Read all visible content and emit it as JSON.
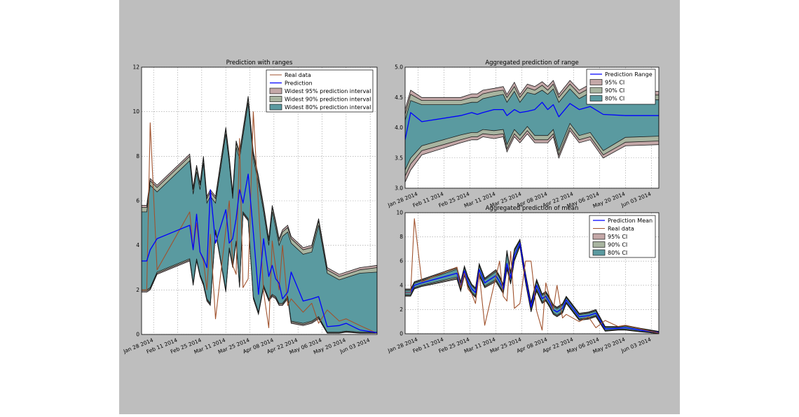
{
  "colors": {
    "panel_bg": "#bebebe",
    "real": "#a0522d",
    "prediction": "#0000ff",
    "ci95": "#c4a8a8",
    "ci90": "#a8b4a0",
    "ci80": "#5a9aa0"
  },
  "chart_data": [
    {
      "type": "area",
      "title": "Prediction with ranges",
      "xlabel": "",
      "ylabel": "",
      "ylim": [
        0,
        12
      ],
      "yticks": [
        "0",
        "2",
        "4",
        "6",
        "8",
        "10",
        "12"
      ],
      "xticks": [
        "Jan 28 2014",
        "Feb 11 2014",
        "Feb 25 2014",
        "Mar 11 2014",
        "Mar 25 2014",
        "Apr 08 2014",
        "Apr 22 2014",
        "May 06 2014",
        "May 20 2014",
        "Jun 03 2014"
      ],
      "xrange": [
        "2014-01-21",
        "2014-06-07"
      ],
      "grid": true,
      "legend_position": "top-right",
      "legend": [
        "Real data",
        "Prediction",
        "Widest 95% prediction interval",
        "Widest 90% prediction interval",
        "Widest 80% prediction interval"
      ],
      "x": [
        "2014-01-21",
        "2014-01-24",
        "2014-01-26",
        "2014-01-30",
        "2014-02-18",
        "2014-02-20",
        "2014-02-22",
        "2014-02-24",
        "2014-02-26",
        "2014-02-28",
        "2014-03-02",
        "2014-03-05",
        "2014-03-11",
        "2014-03-13",
        "2014-03-15",
        "2014-03-17",
        "2014-03-19",
        "2014-03-21",
        "2014-03-24",
        "2014-03-27",
        "2014-03-30",
        "2014-04-02",
        "2014-04-05",
        "2014-04-07",
        "2014-04-09",
        "2014-04-11",
        "2014-04-13",
        "2014-04-16",
        "2014-04-18",
        "2014-04-25",
        "2014-04-30",
        "2014-05-04",
        "2014-05-09",
        "2014-05-16",
        "2014-05-20",
        "2014-05-28",
        "2014-06-07"
      ],
      "series": [
        {
          "name": "Real data",
          "values": [
            2,
            2,
            9.5,
            2.9,
            5.5,
            3.8,
            5.0,
            3.7,
            3.3,
            2.0,
            4.5,
            0.7,
            4.7,
            6.0,
            3.1,
            2.7,
            8.8,
            2.1,
            2.5,
            10.0,
            5.8,
            1.9,
            0.3,
            4.2,
            3.0,
            2.0,
            4.0,
            1.3,
            1.6,
            1.0,
            1.4,
            0.5,
            1.1,
            0.6,
            0.7,
            0.4,
            0.05
          ]
        },
        {
          "name": "Prediction",
          "values": [
            3.3,
            3.3,
            3.8,
            4.3,
            4.9,
            3.8,
            5.4,
            3.7,
            3.4,
            3.0,
            6.5,
            4.1,
            5.6,
            4.1,
            4.3,
            5.2,
            6.5,
            5.9,
            7.2,
            4.6,
            1.8,
            4.3,
            2.6,
            3.1,
            2.5,
            2.3,
            1.6,
            1.9,
            2.8,
            1.5,
            1.6,
            1.7,
            0.35,
            0.4,
            0.5,
            0.2,
            0.08
          ]
        },
        {
          "name": "Widest 95% prediction interval",
          "upper": [
            5.8,
            5.8,
            7.0,
            6.7,
            8.1,
            6.6,
            7.6,
            6.8,
            8.0,
            6.2,
            6.5,
            6.2,
            9.3,
            8.0,
            6.4,
            8.7,
            8.2,
            9.2,
            10.7,
            8.2,
            7.1,
            5.8,
            4.3,
            5.8,
            5.1,
            4.3,
            4.7,
            4.9,
            4.4,
            3.9,
            4.0,
            5.2,
            3.0,
            2.7,
            2.8,
            3.0,
            3.1
          ],
          "lower": [
            1.9,
            1.9,
            2.0,
            2.7,
            3.3,
            2.2,
            3.3,
            2.6,
            2.2,
            1.5,
            1.3,
            4.6,
            1.9,
            3.8,
            3.0,
            4.1,
            2.1,
            5.4,
            5.1,
            1.6,
            0.9,
            2.1,
            1.5,
            1.7,
            1.6,
            1.3,
            1.3,
            1.6,
            0.5,
            0.4,
            0.5,
            0.7,
            0.05,
            0.05,
            0.1,
            0.05,
            0.05
          ]
        },
        {
          "name": "Widest 90% prediction interval",
          "upper": [
            5.7,
            5.7,
            6.9,
            6.6,
            8.0,
            6.5,
            7.5,
            6.7,
            7.9,
            6.1,
            6.4,
            6.1,
            9.2,
            7.9,
            6.3,
            8.6,
            8.1,
            9.1,
            10.6,
            8.1,
            7.0,
            5.7,
            4.2,
            5.7,
            5.0,
            4.2,
            4.6,
            4.8,
            4.3,
            3.8,
            3.9,
            5.1,
            2.9,
            2.6,
            2.7,
            2.9,
            3.0
          ],
          "lower": [
            1.95,
            1.95,
            2.05,
            2.75,
            3.35,
            2.25,
            3.35,
            2.65,
            2.25,
            1.55,
            1.35,
            4.65,
            1.95,
            3.85,
            3.05,
            4.15,
            2.15,
            5.45,
            5.15,
            1.65,
            0.95,
            2.15,
            1.55,
            1.75,
            1.65,
            1.35,
            1.35,
            1.65,
            0.55,
            0.45,
            0.55,
            0.75,
            0.07,
            0.07,
            0.12,
            0.07,
            0.07
          ]
        },
        {
          "name": "Widest 80% prediction interval",
          "upper": [
            5.5,
            5.5,
            6.7,
            6.4,
            7.8,
            6.3,
            7.3,
            6.5,
            7.7,
            5.9,
            6.2,
            5.9,
            9.0,
            7.7,
            6.1,
            8.4,
            7.9,
            8.9,
            10.4,
            7.9,
            6.8,
            5.5,
            4.0,
            5.5,
            4.8,
            4.0,
            4.4,
            4.6,
            4.1,
            3.6,
            3.7,
            4.9,
            2.75,
            2.45,
            2.55,
            2.75,
            2.8
          ],
          "lower": [
            2.0,
            2.0,
            2.1,
            2.8,
            3.4,
            2.3,
            3.4,
            2.7,
            2.3,
            1.6,
            1.4,
            4.7,
            2.0,
            3.9,
            3.1,
            4.2,
            2.2,
            5.5,
            5.2,
            1.7,
            1.0,
            2.2,
            1.6,
            1.8,
            1.7,
            1.4,
            1.4,
            1.7,
            0.6,
            0.5,
            0.6,
            0.8,
            0.1,
            0.1,
            0.15,
            0.1,
            0.1
          ]
        }
      ]
    },
    {
      "type": "area",
      "title": "Aggregated prediction of range",
      "xlabel": "",
      "ylabel": "",
      "ylim": [
        3.0,
        5.0
      ],
      "yticks": [
        "3.0",
        "3.5",
        "4.0",
        "4.5",
        "5.0"
      ],
      "xticks": [
        "Jan 28 2014",
        "Feb 11 2014",
        "Feb 25 2014",
        "Mar 11 2014",
        "Mar 25 2014",
        "Apr 08 2014",
        "Apr 22 2014",
        "May 06 2014",
        "May 20 2014",
        "Jun 03 2014"
      ],
      "xrange": [
        "2014-01-21",
        "2014-06-07"
      ],
      "grid": true,
      "legend_position": "top-right",
      "legend": [
        "Prediction Range",
        "95% CI",
        "90% CI",
        "80% CI"
      ],
      "x": [
        "2014-01-21",
        "2014-01-24",
        "2014-01-30",
        "2014-02-20",
        "2014-02-26",
        "2014-03-01",
        "2014-03-04",
        "2014-03-10",
        "2014-03-15",
        "2014-03-17",
        "2014-03-21",
        "2014-03-24",
        "2014-03-28",
        "2014-04-01",
        "2014-04-05",
        "2014-04-08",
        "2014-04-11",
        "2014-04-14",
        "2014-04-20",
        "2014-04-25",
        "2014-05-01",
        "2014-05-08",
        "2014-05-20",
        "2014-06-07"
      ],
      "series": [
        {
          "name": "Prediction Range",
          "values": [
            3.8,
            4.25,
            4.1,
            4.2,
            4.25,
            4.22,
            4.25,
            4.3,
            4.3,
            4.2,
            4.3,
            4.25,
            4.27,
            4.3,
            4.42,
            4.3,
            4.38,
            4.18,
            4.4,
            4.3,
            4.35,
            4.22,
            4.2,
            4.2
          ]
        },
        {
          "name": "95% CI",
          "upper": [
            4.3,
            4.62,
            4.5,
            4.5,
            4.56,
            4.56,
            4.62,
            4.65,
            4.68,
            4.55,
            4.75,
            4.55,
            4.72,
            4.68,
            4.76,
            4.68,
            4.78,
            4.55,
            4.78,
            4.62,
            4.72,
            4.62,
            4.6,
            4.6
          ],
          "lower": [
            3.1,
            3.3,
            3.55,
            3.75,
            3.8,
            3.8,
            3.85,
            3.82,
            3.85,
            3.6,
            3.85,
            3.75,
            3.9,
            3.75,
            3.75,
            3.75,
            3.85,
            3.5,
            3.95,
            3.75,
            3.8,
            3.5,
            3.7,
            3.72
          ]
        },
        {
          "name": "90% CI",
          "upper": [
            4.22,
            4.55,
            4.45,
            4.45,
            4.5,
            4.5,
            4.56,
            4.6,
            4.62,
            4.5,
            4.68,
            4.5,
            4.66,
            4.62,
            4.7,
            4.62,
            4.72,
            4.5,
            4.72,
            4.56,
            4.66,
            4.56,
            4.54,
            4.54
          ],
          "lower": [
            3.2,
            3.4,
            3.62,
            3.8,
            3.85,
            3.85,
            3.9,
            3.88,
            3.9,
            3.65,
            3.9,
            3.8,
            3.95,
            3.8,
            3.8,
            3.8,
            3.9,
            3.55,
            4.0,
            3.8,
            3.85,
            3.55,
            3.76,
            3.78
          ]
        },
        {
          "name": "80% CI",
          "upper": [
            4.12,
            4.45,
            4.38,
            4.38,
            4.42,
            4.42,
            4.48,
            4.52,
            4.55,
            4.42,
            4.6,
            4.42,
            4.58,
            4.55,
            4.62,
            4.55,
            4.64,
            4.42,
            4.64,
            4.48,
            4.58,
            4.48,
            4.46,
            4.46
          ],
          "lower": [
            3.3,
            3.5,
            3.7,
            3.88,
            3.92,
            3.92,
            3.97,
            3.95,
            3.97,
            3.72,
            3.97,
            3.87,
            4.02,
            3.87,
            3.87,
            3.87,
            3.97,
            3.62,
            4.07,
            3.87,
            3.92,
            3.62,
            3.84,
            3.86
          ]
        }
      ]
    },
    {
      "type": "area",
      "title": "Aggregated prediction of mean",
      "xlabel": "",
      "ylabel": "",
      "ylim": [
        0,
        10
      ],
      "yticks": [
        "0",
        "2",
        "4",
        "6",
        "8",
        "10"
      ],
      "xticks": [
        "Jan 28 2014",
        "Feb 11 2014",
        "Feb 25 2014",
        "Mar 11 2014",
        "Mar 25 2014",
        "Apr 08 2014",
        "Apr 22 2014",
        "May 06 2014",
        "May 20 2014",
        "Jun 03 2014"
      ],
      "xrange": [
        "2014-01-21",
        "2014-06-07"
      ],
      "grid": true,
      "legend_position": "top-right",
      "legend": [
        "Prediction Mean",
        "Real data",
        "95% CI",
        "90% CI",
        "80% CI"
      ],
      "x": [
        "2014-01-21",
        "2014-01-24",
        "2014-01-26",
        "2014-01-30",
        "2014-02-18",
        "2014-02-20",
        "2014-02-22",
        "2014-02-24",
        "2014-02-26",
        "2014-02-28",
        "2014-03-02",
        "2014-03-05",
        "2014-03-11",
        "2014-03-13",
        "2014-03-15",
        "2014-03-17",
        "2014-03-19",
        "2014-03-21",
        "2014-03-24",
        "2014-03-27",
        "2014-03-30",
        "2014-04-02",
        "2014-04-05",
        "2014-04-07",
        "2014-04-09",
        "2014-04-11",
        "2014-04-13",
        "2014-04-16",
        "2014-04-18",
        "2014-04-25",
        "2014-04-30",
        "2014-05-04",
        "2014-05-09",
        "2014-05-16",
        "2014-05-20",
        "2014-05-28",
        "2014-06-07"
      ],
      "series": [
        {
          "name": "Prediction Mean",
          "values": [
            3.4,
            3.4,
            4.0,
            4.2,
            5.0,
            3.9,
            5.2,
            4.3,
            3.7,
            3.4,
            5.3,
            4.2,
            4.8,
            4.3,
            3.7,
            5.8,
            4.6,
            6.5,
            7.5,
            4.6,
            2.2,
            4.0,
            2.9,
            3.1,
            2.6,
            2.0,
            1.8,
            2.1,
            2.8,
            1.4,
            1.5,
            1.7,
            0.4,
            0.45,
            0.5,
            0.3,
            0.1
          ]
        },
        {
          "name": "Real data",
          "values": [
            3.4,
            3.4,
            9.5,
            4.3,
            5.5,
            3.8,
            5.0,
            3.7,
            3.3,
            2.5,
            5.0,
            0.7,
            4.7,
            6.0,
            3.1,
            2.7,
            6.8,
            2.1,
            2.5,
            6.0,
            6.0,
            1.9,
            0.3,
            4.2,
            3.0,
            2.0,
            4.0,
            1.3,
            1.6,
            1.0,
            1.4,
            0.5,
            1.1,
            0.6,
            0.7,
            0.4,
            0.05
          ]
        },
        {
          "name": "95% CI",
          "upper": [
            3.7,
            3.7,
            4.3,
            4.5,
            5.5,
            4.3,
            5.6,
            4.7,
            4.1,
            3.8,
            5.8,
            4.6,
            5.3,
            4.8,
            4.1,
            6.9,
            5.1,
            7.0,
            7.8,
            5.0,
            2.6,
            4.5,
            3.3,
            3.5,
            3.0,
            2.4,
            2.2,
            2.5,
            3.1,
            1.7,
            1.8,
            2.0,
            0.6,
            0.6,
            0.7,
            0.45,
            0.2
          ],
          "lower": [
            3.1,
            3.1,
            3.7,
            3.9,
            4.5,
            3.5,
            4.8,
            3.9,
            3.3,
            3.0,
            4.8,
            3.8,
            4.3,
            3.8,
            3.3,
            5.3,
            4.1,
            6.0,
            7.2,
            4.2,
            1.8,
            3.5,
            2.5,
            2.7,
            2.2,
            1.6,
            1.4,
            1.7,
            2.5,
            1.1,
            1.2,
            1.4,
            0.2,
            0.3,
            0.3,
            0.15,
            0.02
          ]
        },
        {
          "name": "90% CI",
          "upper": [
            3.65,
            3.65,
            4.25,
            4.45,
            5.42,
            4.24,
            5.54,
            4.64,
            4.04,
            3.74,
            5.72,
            4.54,
            5.22,
            4.72,
            4.04,
            6.8,
            5.04,
            6.92,
            7.75,
            4.94,
            2.54,
            4.42,
            3.24,
            3.44,
            2.94,
            2.34,
            2.14,
            2.44,
            3.05,
            1.65,
            1.75,
            1.95,
            0.57,
            0.57,
            0.67,
            0.42,
            0.18
          ],
          "lower": [
            3.15,
            3.15,
            3.75,
            3.95,
            4.58,
            3.56,
            4.86,
            3.96,
            3.36,
            3.06,
            4.88,
            3.86,
            4.38,
            3.88,
            3.36,
            5.4,
            4.16,
            6.08,
            7.25,
            4.26,
            1.86,
            3.58,
            2.56,
            2.76,
            2.26,
            1.66,
            1.46,
            1.76,
            2.55,
            1.15,
            1.25,
            1.45,
            0.23,
            0.33,
            0.33,
            0.18,
            0.03
          ]
        },
        {
          "name": "80% CI",
          "upper": [
            3.58,
            3.58,
            4.18,
            4.38,
            5.32,
            4.16,
            5.46,
            4.56,
            3.96,
            3.66,
            5.62,
            4.46,
            5.12,
            4.62,
            3.96,
            6.68,
            4.96,
            6.82,
            7.68,
            4.86,
            2.46,
            4.32,
            3.16,
            3.36,
            2.86,
            2.26,
            2.06,
            2.36,
            2.98,
            1.58,
            1.68,
            1.88,
            0.53,
            0.54,
            0.63,
            0.39,
            0.15
          ],
          "lower": [
            3.22,
            3.22,
            3.82,
            4.02,
            4.68,
            3.64,
            4.94,
            4.04,
            3.44,
            3.14,
            4.98,
            3.94,
            4.48,
            3.98,
            3.44,
            5.52,
            4.24,
            6.18,
            7.32,
            4.34,
            1.94,
            3.68,
            2.64,
            2.84,
            2.34,
            1.74,
            1.54,
            1.84,
            2.62,
            1.22,
            1.32,
            1.52,
            0.27,
            0.36,
            0.37,
            0.21,
            0.05
          ]
        }
      ]
    }
  ]
}
